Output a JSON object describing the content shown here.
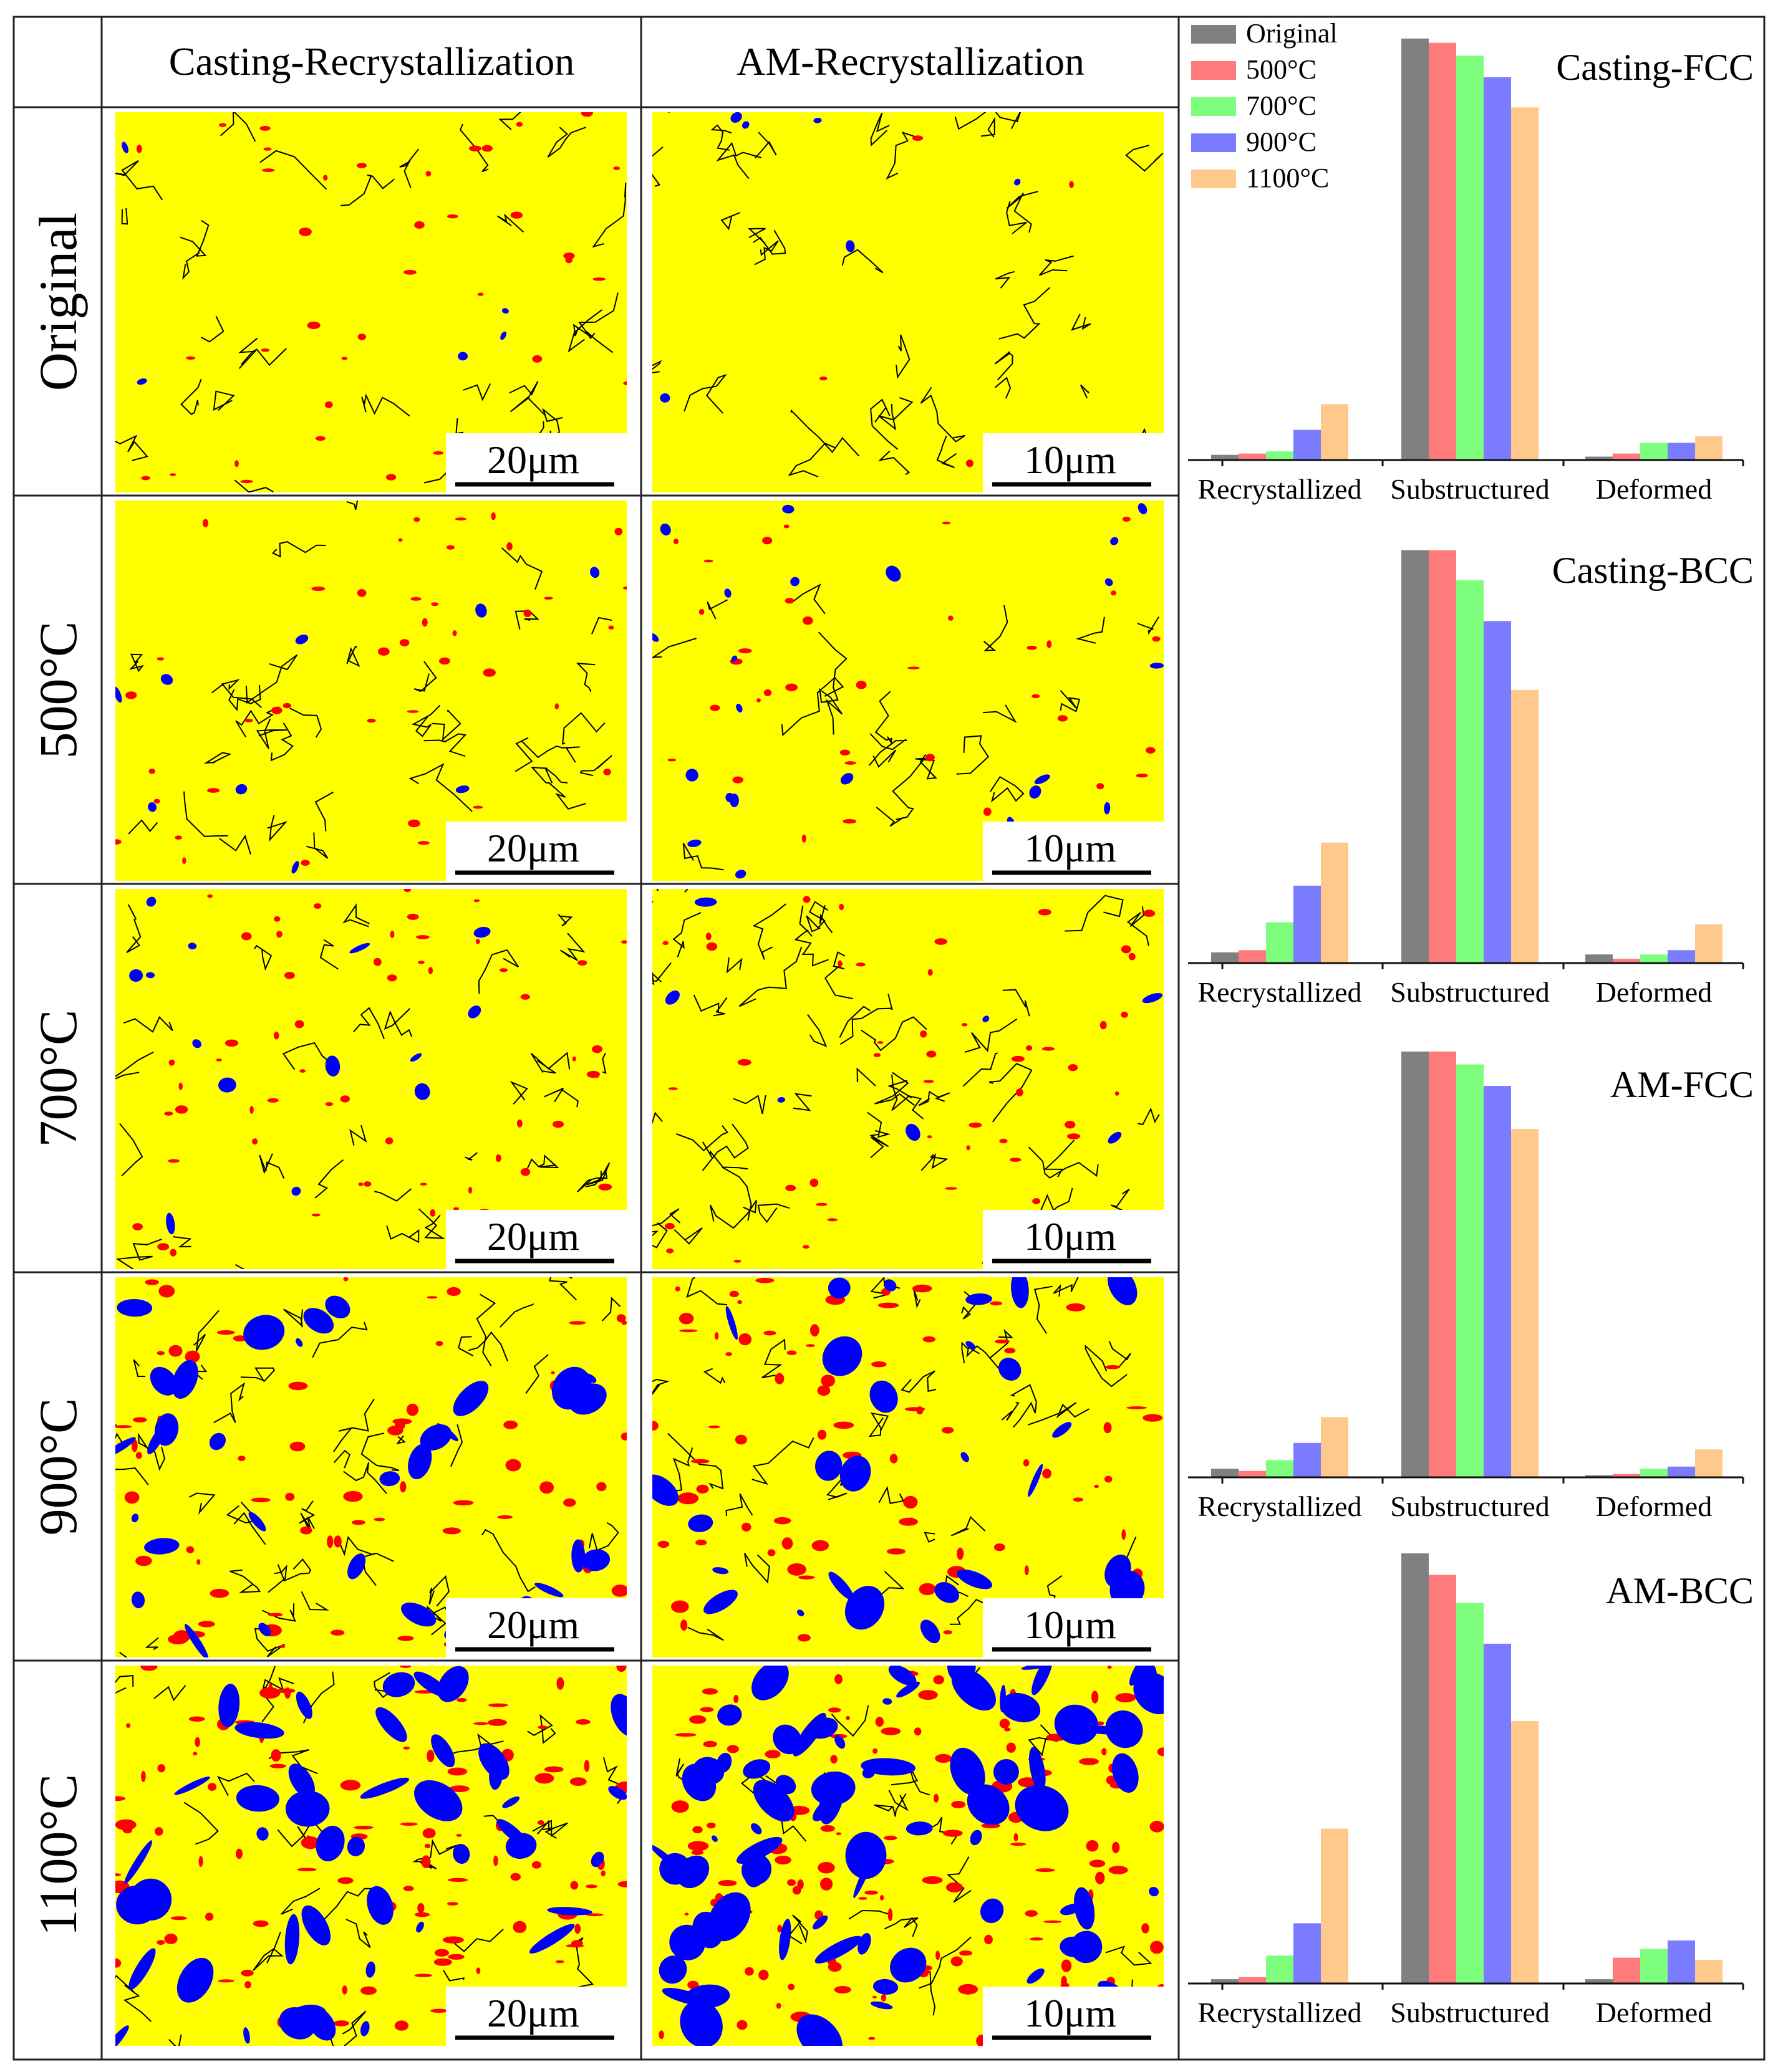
{
  "figure": {
    "column_headers": [
      "Casting-Recrystallization",
      "AM-Recrystallization"
    ],
    "row_labels": [
      "Original",
      "500°C",
      "700°C",
      "900°C",
      "1100°C"
    ],
    "scale_bars": [
      "20μm",
      "10μm"
    ],
    "phase_colors": {
      "matrix": "#ffff00",
      "red_regions": "#ff0000",
      "blue_regions": "#0000ff",
      "boundaries": "#000000"
    },
    "maps": {
      "casting": [
        {
          "blue": 5,
          "red": 40,
          "lines": 30
        },
        {
          "blue": 10,
          "red": 45,
          "lines": 35
        },
        {
          "blue": 14,
          "red": 60,
          "lines": 30
        },
        {
          "blue": 32,
          "red": 70,
          "lines": 45
        },
        {
          "blue": 45,
          "red": 110,
          "lines": 30
        }
      ],
      "am": [
        {
          "blue": 6,
          "red": 5,
          "lines": 35
        },
        {
          "blue": 25,
          "red": 40,
          "lines": 20
        },
        {
          "blue": 8,
          "red": 55,
          "lines": 50
        },
        {
          "blue": 28,
          "red": 80,
          "lines": 35
        },
        {
          "blue": 80,
          "red": 140,
          "lines": 20
        }
      ]
    }
  },
  "chart_data": [
    {
      "type": "bar",
      "title": "Casting-FCC",
      "categories": [
        "Recrystallized",
        "Substructured",
        "Deformed"
      ],
      "legend": [
        "Original",
        "500°C",
        "700°C",
        "900°C",
        "1100°C"
      ],
      "series": [
        {
          "name": "Original",
          "color": "#808080",
          "values": [
            1.2,
            98,
            0.8
          ]
        },
        {
          "name": "500°C",
          "color": "#ff7b7b",
          "values": [
            1.5,
            97,
            1.5
          ]
        },
        {
          "name": "700°C",
          "color": "#7dff7d",
          "values": [
            2.0,
            94,
            4.0
          ]
        },
        {
          "name": "900°C",
          "color": "#7b7bff",
          "values": [
            7.0,
            89,
            4.0
          ]
        },
        {
          "name": "1100°C",
          "color": "#ffc98c",
          "values": [
            13,
            82,
            5.5
          ]
        }
      ],
      "ylim": [
        0,
        100
      ]
    },
    {
      "type": "bar",
      "title": "Casting-BCC",
      "categories": [
        "Recrystallized",
        "Substructured",
        "Deformed"
      ],
      "series": [
        {
          "name": "Original",
          "color": "#808080",
          "values": [
            2.5,
            96,
            2.0
          ]
        },
        {
          "name": "500°C",
          "color": "#ff7b7b",
          "values": [
            3.0,
            96,
            1.0
          ]
        },
        {
          "name": "700°C",
          "color": "#7dff7d",
          "values": [
            9.5,
            89,
            2.0
          ]
        },
        {
          "name": "900°C",
          "color": "#7b7bff",
          "values": [
            18,
            79.5,
            3.0
          ]
        },
        {
          "name": "1100°C",
          "color": "#ffc98c",
          "values": [
            28,
            63.5,
            9.0
          ]
        }
      ],
      "ylim": [
        0,
        100
      ]
    },
    {
      "type": "bar",
      "title": "AM-FCC",
      "categories": [
        "Recrystallized",
        "Substructured",
        "Deformed"
      ],
      "series": [
        {
          "name": "Original",
          "color": "#808080",
          "values": [
            2.0,
            99,
            0.5
          ]
        },
        {
          "name": "500°C",
          "color": "#ff7b7b",
          "values": [
            1.5,
            99,
            0.8
          ]
        },
        {
          "name": "700°C",
          "color": "#7dff7d",
          "values": [
            4.0,
            96,
            2.0
          ]
        },
        {
          "name": "900°C",
          "color": "#7b7bff",
          "values": [
            8.0,
            91,
            2.5
          ]
        },
        {
          "name": "1100°C",
          "color": "#ffc98c",
          "values": [
            14,
            81,
            6.5
          ]
        }
      ],
      "ylim": [
        0,
        100
      ]
    },
    {
      "type": "bar",
      "title": "AM-BCC",
      "categories": [
        "Recrystallized",
        "Substructured",
        "Deformed"
      ],
      "series": [
        {
          "name": "Original",
          "color": "#808080",
          "values": [
            1.0,
            100,
            1.0
          ]
        },
        {
          "name": "500°C",
          "color": "#ff7b7b",
          "values": [
            1.5,
            95,
            6.0
          ]
        },
        {
          "name": "700°C",
          "color": "#7dff7d",
          "values": [
            6.5,
            88.5,
            8.0
          ]
        },
        {
          "name": "900°C",
          "color": "#7b7bff",
          "values": [
            14,
            79,
            10
          ]
        },
        {
          "name": "1100°C",
          "color": "#ffc98c",
          "values": [
            36,
            61,
            5.5
          ]
        }
      ],
      "ylim": [
        0,
        100
      ]
    }
  ]
}
